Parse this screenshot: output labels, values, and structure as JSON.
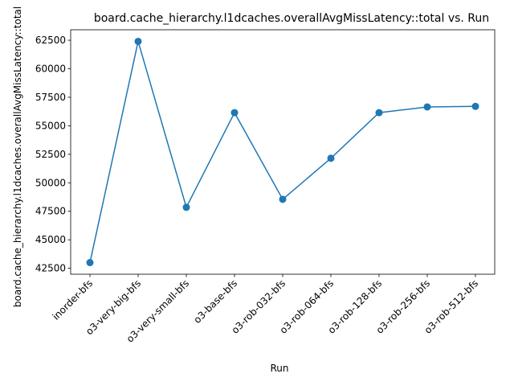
{
  "chart_data": {
    "type": "line",
    "title": "board.cache_hierarchy.l1dcaches.overallAvgMissLatency::total vs. Run",
    "xlabel": "Run",
    "ylabel": "board.cache_hierarchy.l1dcaches.overallAvgMissLatency::total",
    "categories": [
      "inorder-bfs",
      "o3-very-big-bfs",
      "o3-very-small-bfs",
      "o3-base-bfs",
      "o3-rob-032-bfs",
      "o3-rob-064-bfs",
      "o3-rob-128-bfs",
      "o3-rob-256-bfs",
      "o3-rob-512-bfs"
    ],
    "series": [
      {
        "values": [
          43000,
          62400,
          47850,
          56150,
          48550,
          52150,
          56150,
          56650,
          56700
        ],
        "color": "#1f77b4"
      }
    ],
    "yticks": [
      42500,
      45000,
      47500,
      50000,
      52500,
      55000,
      57500,
      60000,
      62500
    ],
    "ylim": [
      41980,
      63420
    ],
    "grid": false,
    "legend": "none",
    "marker": "circle"
  }
}
